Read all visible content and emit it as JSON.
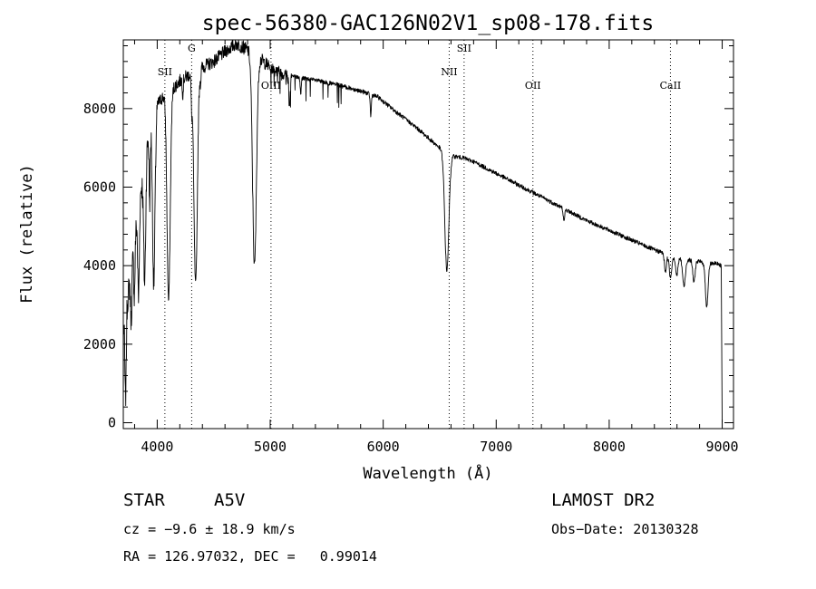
{
  "chart_data": {
    "type": "line",
    "title": "spec-56380-GAC126N02V1_sp08-178.fits",
    "xlabel": "Wavelength (Å)",
    "ylabel": "Flux (relative)",
    "xlim": [
      3700,
      9100
    ],
    "ylim": [
      -150,
      9750
    ],
    "xticks": [
      4000,
      5000,
      6000,
      7000,
      8000,
      9000
    ],
    "yticks": [
      0,
      2000,
      4000,
      6000,
      8000
    ],
    "grid": false,
    "continuum": [
      [
        3700,
        2400
      ],
      [
        3750,
        3400
      ],
      [
        3800,
        4700
      ],
      [
        3850,
        5800
      ],
      [
        3900,
        6900
      ],
      [
        3950,
        7700
      ],
      [
        4000,
        8100
      ],
      [
        4050,
        8300
      ],
      [
        4100,
        8400
      ],
      [
        4200,
        8700
      ],
      [
        4300,
        8900
      ],
      [
        4400,
        9050
      ],
      [
        4500,
        9200
      ],
      [
        4600,
        9450
      ],
      [
        4700,
        9650
      ],
      [
        4800,
        9500
      ],
      [
        4900,
        9300
      ],
      [
        5000,
        9050
      ],
      [
        5100,
        8900
      ],
      [
        5200,
        8820
      ],
      [
        5400,
        8720
      ],
      [
        5600,
        8600
      ],
      [
        5800,
        8450
      ],
      [
        5950,
        8300
      ],
      [
        6100,
        7950
      ],
      [
        6300,
        7500
      ],
      [
        6500,
        7000
      ],
      [
        6600,
        6800
      ],
      [
        6700,
        6750
      ],
      [
        6800,
        6650
      ],
      [
        7000,
        6350
      ],
      [
        7200,
        6050
      ],
      [
        7500,
        5600
      ],
      [
        7800,
        5150
      ],
      [
        8000,
        4900
      ],
      [
        8200,
        4650
      ],
      [
        8400,
        4400
      ],
      [
        8500,
        4300
      ],
      [
        8600,
        4200
      ],
      [
        8800,
        4100
      ],
      [
        8950,
        4050
      ],
      [
        8990,
        4000
      ]
    ],
    "absorption_features": [
      {
        "center": 3720,
        "width": 6,
        "depth": 2200
      },
      {
        "center": 3770,
        "width": 6,
        "depth": 1300
      },
      {
        "center": 3798,
        "width": 6,
        "depth": 1400
      },
      {
        "center": 3835,
        "width": 7,
        "depth": 2300
      },
      {
        "center": 3889,
        "width": 9,
        "depth": 3100
      },
      {
        "center": 3933,
        "width": 5,
        "depth": 1800
      },
      {
        "center": 3970,
        "width": 11,
        "depth": 4300
      },
      {
        "center": 4101,
        "width": 14,
        "depth": 5300
      },
      {
        "center": 4227,
        "width": 4,
        "depth": 400
      },
      {
        "center": 4305,
        "width": 5,
        "depth": 700
      },
      {
        "center": 4340,
        "width": 15,
        "depth": 5500
      },
      {
        "center": 4384,
        "width": 4,
        "depth": 300
      },
      {
        "center": 4861,
        "width": 17,
        "depth": 5400
      },
      {
        "center": 5170,
        "width": 6,
        "depth": 700
      },
      {
        "center": 5270,
        "width": 5,
        "depth": 400
      },
      {
        "center": 5890,
        "width": 5,
        "depth": 550
      },
      {
        "center": 6563,
        "width": 18,
        "depth": 3000
      },
      {
        "center": 7600,
        "width": 6,
        "depth": 350
      },
      {
        "center": 8498,
        "width": 9,
        "depth": 450
      },
      {
        "center": 8542,
        "width": 11,
        "depth": 550
      },
      {
        "center": 8598,
        "width": 10,
        "depth": 450
      },
      {
        "center": 8662,
        "width": 12,
        "depth": 700
      },
      {
        "center": 8750,
        "width": 10,
        "depth": 550
      },
      {
        "center": 8863,
        "width": 12,
        "depth": 1100
      }
    ],
    "end_drops": [
      [
        3700,
        0
      ],
      [
        9000,
        0
      ]
    ],
    "line_markers": [
      {
        "label": "SII",
        "x": 4068,
        "y": 8850
      },
      {
        "label": "G",
        "x": 4305,
        "y": 9450
      },
      {
        "label": "OIII",
        "x": 5007,
        "y": 8500
      },
      {
        "label": "NII",
        "x": 6584,
        "y": 8850
      },
      {
        "label": "SII",
        "x": 6716,
        "y": 9450
      },
      {
        "label": "OII",
        "x": 7325,
        "y": 8500
      },
      {
        "label": "CaII",
        "x": 8542,
        "y": 8500
      }
    ]
  },
  "info": {
    "object_class": "STAR",
    "subclass": "A5V",
    "survey": "LAMOST DR2",
    "cz": "cz = −9.6 ± 18.9 km/s",
    "obs_date": "Obs−Date: 20130328",
    "coords": "RA = 126.97032, DEC =   0.99014"
  }
}
